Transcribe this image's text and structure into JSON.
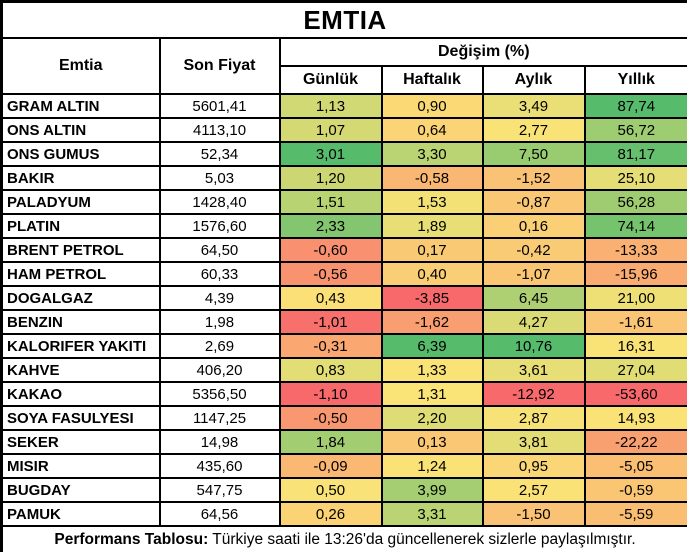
{
  "title": "EMTIA",
  "table": {
    "headers": {
      "name": "Emtia",
      "price": "Son Fiyat",
      "change_group": "Değişim (%)",
      "periods": [
        "Günlük",
        "Haftalık",
        "Aylık",
        "Yıllık"
      ]
    }
  },
  "chart_data": {
    "type": "table",
    "title": "EMTIA",
    "columns": [
      "Emtia",
      "Son Fiyat",
      "Günlük",
      "Haftalık",
      "Aylık",
      "Yıllık"
    ],
    "decimal_separator": ",",
    "rows": [
      [
        "GRAM ALTIN",
        "5601,41",
        "1,13",
        "0,90",
        "3,49",
        "87,74"
      ],
      [
        "ONS ALTIN",
        "4113,10",
        "1,07",
        "0,64",
        "2,77",
        "56,72"
      ],
      [
        "ONS GUMUS",
        "52,34",
        "3,01",
        "3,30",
        "7,50",
        "81,17"
      ],
      [
        "BAKIR",
        "5,03",
        "1,20",
        "-0,58",
        "-1,52",
        "25,10"
      ],
      [
        "PALADYUM",
        "1428,40",
        "1,51",
        "1,53",
        "-0,87",
        "56,28"
      ],
      [
        "PLATIN",
        "1576,60",
        "2,33",
        "1,89",
        "0,16",
        "74,14"
      ],
      [
        "BRENT PETROL",
        "64,50",
        "-0,60",
        "0,17",
        "-0,42",
        "-13,33"
      ],
      [
        "HAM PETROL",
        "60,33",
        "-0,56",
        "0,40",
        "-1,07",
        "-15,96"
      ],
      [
        "DOGALGAZ",
        "4,39",
        "0,43",
        "-3,85",
        "6,45",
        "21,00"
      ],
      [
        "BENZIN",
        "1,98",
        "-1,01",
        "-1,62",
        "4,27",
        "-1,61"
      ],
      [
        "KALORIFER YAKITI",
        "2,69",
        "-0,31",
        "6,39",
        "10,76",
        "16,31"
      ],
      [
        "KAHVE",
        "406,20",
        "0,83",
        "1,33",
        "3,61",
        "27,04"
      ],
      [
        "KAKAO",
        "5356,50",
        "-1,10",
        "1,31",
        "-12,92",
        "-53,60"
      ],
      [
        "SOYA FASULYESI",
        "1147,25",
        "-0,50",
        "2,20",
        "2,87",
        "14,93"
      ],
      [
        "SEKER",
        "14,98",
        "1,84",
        "0,13",
        "3,81",
        "-22,22"
      ],
      [
        "MISIR",
        "435,60",
        "-0,09",
        "1,24",
        "0,95",
        "-5,05"
      ],
      [
        "BUGDAY",
        "547,75",
        "0,50",
        "3,99",
        "2,57",
        "-0,59"
      ],
      [
        "PAMUK",
        "64,56",
        "0,26",
        "3,31",
        "-1,50",
        "-5,59"
      ]
    ],
    "heatmap": {
      "applies_to": "change columns (Günlük, Haftalık, Aylık, Yıllık), 3-color scale per column: min → 50th percentile → max",
      "red": "#F8696B",
      "yellow": "#FBE377",
      "green": "#57BB6C"
    }
  },
  "footer": {
    "label": "Performans Tablosu:",
    "text": " Türkiye saati ile 13:26'da güncellenerek sizlerle paylaşılmıştır."
  },
  "colors": {
    "border": "#000000",
    "background": "#FFFFFF",
    "text": "#000000"
  }
}
